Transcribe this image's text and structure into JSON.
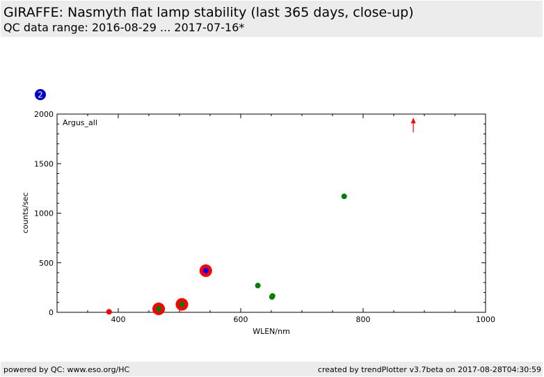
{
  "header": {
    "title": "GIRAFFE: Nasmyth flat lamp stability (last 365 days, close-up)",
    "subtitle": "QC data range: 2016-08-29 ... 2017-07-16*"
  },
  "footer": {
    "left": "powered by QC: www.eso.org/HC",
    "right": "created by trendPlotter v3.7beta on 2017-08-28T04:30:59"
  },
  "colors": {
    "panel_bg": "#ececec",
    "red": "#ff0000",
    "green": "#008000",
    "blue": "#0000ff",
    "badge": "#0000cc"
  },
  "chart_data": {
    "type": "scatter",
    "badge": "2",
    "panel_label": "Argus_all",
    "xlabel": "WLEN/nm",
    "ylabel": "counts/sec",
    "xlim": [
      300,
      1000
    ],
    "ylim": [
      0,
      2000
    ],
    "x_ticks": [
      400,
      600,
      800,
      1000
    ],
    "y_ticks": [
      0,
      500,
      1000,
      1500,
      2000
    ],
    "grid": false,
    "series": [
      {
        "marker": "large red circle",
        "color": "#ff0000",
        "points": [
          [
            466,
            35
          ],
          [
            504,
            80
          ],
          [
            543,
            420
          ]
        ]
      },
      {
        "marker": "small green circle",
        "color": "#008000",
        "points": [
          [
            466,
            35
          ],
          [
            504,
            80
          ],
          [
            628,
            270
          ],
          [
            651,
            155
          ],
          [
            652,
            165
          ],
          [
            769,
            1170
          ]
        ]
      },
      {
        "marker": "small blue circle",
        "color": "#0000ff",
        "points": [
          [
            543,
            420
          ]
        ]
      },
      {
        "marker": "small red circle",
        "color": "#ff0000",
        "points": [
          [
            385,
            5
          ]
        ]
      }
    ],
    "annotations": [
      {
        "type": "up-arrow",
        "color": "#ff0000",
        "x": 882,
        "y": 1900
      }
    ]
  }
}
